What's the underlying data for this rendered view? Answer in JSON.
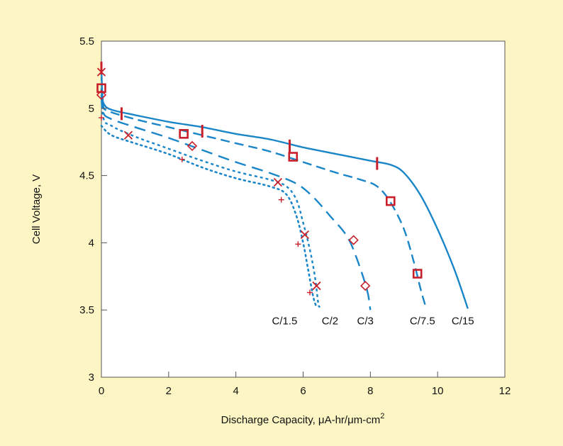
{
  "chart_data": {
    "type": "line",
    "title": "",
    "xlabel": "Discharge Capacity, μA-hr/μm-cm",
    "xlabel_superscript": "2",
    "ylabel": "Cell Voltage, V",
    "xlim": [
      0,
      12
    ],
    "ylim": [
      3,
      5.5
    ],
    "x_ticks": [
      0,
      2,
      4,
      6,
      8,
      10,
      12
    ],
    "x_tick_labels": [
      "0",
      "2",
      "4",
      "6",
      "8",
      "10",
      "12"
    ],
    "y_ticks": [
      3,
      3.5,
      4,
      4.5,
      5,
      5.5
    ],
    "y_tick_labels": [
      "3",
      "3.5",
      "4",
      "4.5",
      "5",
      "5.5"
    ],
    "grid": false,
    "line_color": "#1a86c8",
    "marker_color": "#c8202a",
    "background_color": "#fdf6c4",
    "plot_background": "#ffffff",
    "series": [
      {
        "name": "C/15",
        "line_style": "solid",
        "marker": "bar",
        "points": [
          [
            0,
            5.3
          ],
          [
            0.03,
            5.1
          ],
          [
            0.08,
            5.03
          ],
          [
            0.3,
            4.99
          ],
          [
            1,
            4.95
          ],
          [
            2,
            4.9
          ],
          [
            3,
            4.86
          ],
          [
            4,
            4.81
          ],
          [
            5,
            4.77
          ],
          [
            6,
            4.71
          ],
          [
            7,
            4.66
          ],
          [
            8,
            4.61
          ],
          [
            8.6,
            4.58
          ],
          [
            9,
            4.52
          ],
          [
            9.5,
            4.35
          ],
          [
            10,
            4.1
          ],
          [
            10.5,
            3.8
          ],
          [
            10.9,
            3.51
          ]
        ],
        "markers": [
          [
            0,
            5.3
          ],
          [
            0.6,
            4.96
          ],
          [
            3.0,
            4.83
          ],
          [
            5.6,
            4.72
          ],
          [
            8.2,
            4.59
          ]
        ]
      },
      {
        "name": "C/7.5",
        "line_style": "dashed",
        "marker": "square",
        "points": [
          [
            0,
            5.15
          ],
          [
            0.05,
            5.02
          ],
          [
            0.2,
            4.98
          ],
          [
            1,
            4.92
          ],
          [
            2,
            4.86
          ],
          [
            3,
            4.8
          ],
          [
            4,
            4.74
          ],
          [
            5,
            4.68
          ],
          [
            6,
            4.6
          ],
          [
            7,
            4.52
          ],
          [
            7.7,
            4.47
          ],
          [
            8.2,
            4.42
          ],
          [
            8.6,
            4.3
          ],
          [
            9,
            4.1
          ],
          [
            9.3,
            3.85
          ],
          [
            9.5,
            3.65
          ],
          [
            9.65,
            3.52
          ]
        ],
        "markers": [
          [
            0,
            5.15
          ],
          [
            2.45,
            4.81
          ],
          [
            5.7,
            4.64
          ],
          [
            8.6,
            4.31
          ],
          [
            9.4,
            3.77
          ]
        ]
      },
      {
        "name": "C/3",
        "line_style": "long-dashed",
        "marker": "diamond",
        "points": [
          [
            0,
            5.1
          ],
          [
            0.05,
            4.97
          ],
          [
            0.3,
            4.92
          ],
          [
            1,
            4.86
          ],
          [
            2,
            4.78
          ],
          [
            3,
            4.69
          ],
          [
            4,
            4.6
          ],
          [
            5,
            4.52
          ],
          [
            5.8,
            4.44
          ],
          [
            6.3,
            4.34
          ],
          [
            6.8,
            4.2
          ],
          [
            7.3,
            4.05
          ],
          [
            7.6,
            3.88
          ],
          [
            7.9,
            3.65
          ],
          [
            8.0,
            3.5
          ]
        ],
        "markers": [
          [
            0,
            5.1
          ],
          [
            2.7,
            4.72
          ],
          [
            7.5,
            4.02
          ],
          [
            7.85,
            3.68
          ]
        ]
      },
      {
        "name": "C/2",
        "line_style": "dash-dot",
        "marker": "x",
        "points": [
          [
            0,
            5.27
          ],
          [
            0.05,
            4.94
          ],
          [
            0.3,
            4.87
          ],
          [
            1,
            4.79
          ],
          [
            2,
            4.7
          ],
          [
            3,
            4.61
          ],
          [
            4,
            4.53
          ],
          [
            5,
            4.47
          ],
          [
            5.5,
            4.42
          ],
          [
            5.8,
            4.32
          ],
          [
            6.0,
            4.15
          ],
          [
            6.2,
            3.95
          ],
          [
            6.35,
            3.75
          ],
          [
            6.45,
            3.55
          ],
          [
            6.5,
            3.52
          ]
        ],
        "markers": [
          [
            0,
            5.27
          ],
          [
            0.8,
            4.8
          ],
          [
            5.25,
            4.45
          ],
          [
            6.05,
            4.06
          ],
          [
            6.4,
            3.68
          ]
        ]
      },
      {
        "name": "C/1.5",
        "line_style": "dotted",
        "marker": "plus",
        "points": [
          [
            0,
            4.87
          ],
          [
            0.3,
            4.8
          ],
          [
            1,
            4.74
          ],
          [
            2,
            4.66
          ],
          [
            3,
            4.56
          ],
          [
            4,
            4.48
          ],
          [
            5,
            4.42
          ],
          [
            5.5,
            4.36
          ],
          [
            5.8,
            4.2
          ],
          [
            6.0,
            4.0
          ],
          [
            6.15,
            3.8
          ],
          [
            6.3,
            3.6
          ],
          [
            6.4,
            3.52
          ]
        ],
        "markers": [
          [
            0,
            4.93
          ],
          [
            2.4,
            4.62
          ],
          [
            5.35,
            4.32
          ],
          [
            5.85,
            3.99
          ],
          [
            6.2,
            3.63
          ]
        ]
      }
    ],
    "curve_labels": [
      {
        "text": "C/1.5",
        "x": 5.45,
        "y": 3.42
      },
      {
        "text": "C/2",
        "x": 6.8,
        "y": 3.42
      },
      {
        "text": "C/3",
        "x": 7.85,
        "y": 3.42
      },
      {
        "text": "C/7.5",
        "x": 9.55,
        "y": 3.42
      },
      {
        "text": "C/15",
        "x": 10.75,
        "y": 3.42
      }
    ]
  }
}
